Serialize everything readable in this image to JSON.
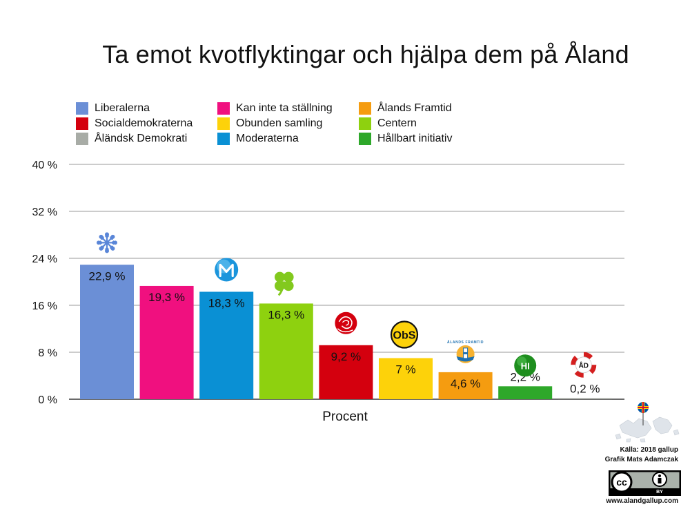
{
  "chart_data": {
    "type": "bar",
    "title": "Ta emot kvotflyktingar och hjälpa dem på Åland",
    "xlabel": "Procent",
    "ylabel": "",
    "ylim": [
      0,
      40
    ],
    "yticks": [
      0,
      8,
      16,
      24,
      32,
      40
    ],
    "ytick_labels": [
      "0 %",
      "8 %",
      "16 %",
      "24 %",
      "32 %",
      "40 %"
    ],
    "grid": true,
    "legend_position": "top",
    "categories": [
      "Liberalerna",
      "Kan inte ta ställning",
      "Moderaterna",
      "Centern",
      "Socialdemokraterna",
      "Obunden samling",
      "Ålands Framtid",
      "Hållbart initiativ",
      "Åländsk Demokrati"
    ],
    "values": [
      22.9,
      19.3,
      18.3,
      16.3,
      9.2,
      7,
      4.6,
      2.2,
      0.2
    ],
    "value_labels": [
      "22,9 %",
      "19,3 %",
      "18,3 %",
      "16,3 %",
      "9,2 %",
      "7 %",
      "4,6 %",
      "2,2 %",
      "0,2 %"
    ],
    "colors": [
      "#6b8fd6",
      "#f0107f",
      "#0a90d4",
      "#8ed10f",
      "#d4000e",
      "#fdd20a",
      "#f59c10",
      "#2ea82a",
      "#a8aca6"
    ],
    "logo_icons": [
      "snowflake-icon",
      "",
      "m-circle-icon",
      "clover-icon",
      "rose-icon",
      "obs-logo-icon",
      "lighthouse-logo-icon",
      "hi-logo-icon",
      "ad-lifebuoy-icon"
    ],
    "logo_texts": {
      "obs": "ObS",
      "hi": "HI",
      "ad": "ÅD",
      "af": "ÅLANDS FRAMTID"
    }
  },
  "footer": {
    "source_line1": "Källa: 2018 gallup",
    "source_line2": "Grafik Mats Adamczak",
    "license_cc": "cc",
    "license_by": "BY",
    "website": "www.alandgallup.com"
  }
}
